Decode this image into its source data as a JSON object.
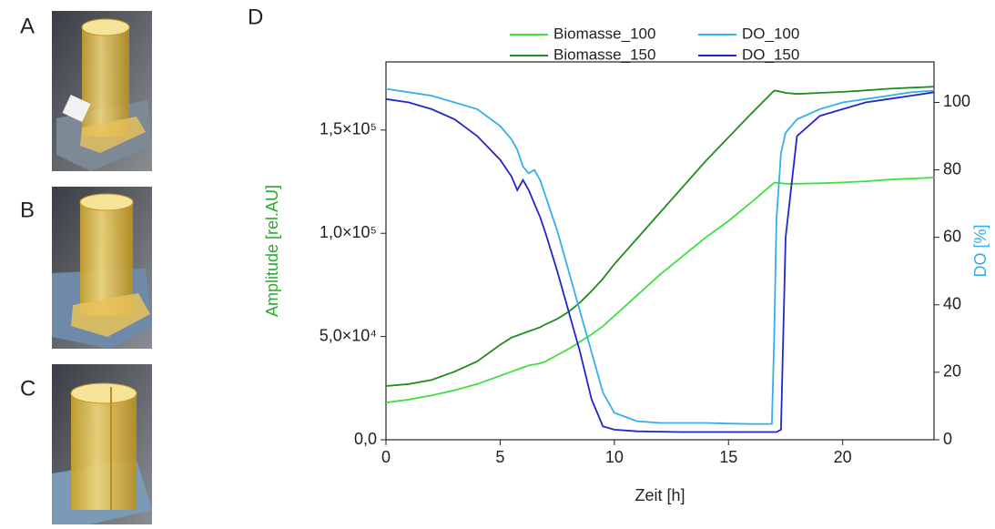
{
  "panel_labels": [
    "A",
    "B",
    "C",
    "D"
  ],
  "chart_data": {
    "type": "line",
    "xlabel": "Zeit [h]",
    "ylabel": "Amplitude [rel.AU]",
    "y2label": "DO [%]",
    "x": [
      0,
      1,
      2,
      3,
      4,
      5,
      5.5,
      5.75,
      6,
      6.25,
      6.5,
      6.75,
      7,
      7.5,
      8,
      8.5,
      9,
      9.5,
      10,
      11,
      12,
      13,
      14,
      15,
      16,
      16.9,
      17,
      17.1,
      17.3,
      17.5,
      18,
      19,
      20,
      21,
      22,
      23,
      24
    ],
    "xlim": [
      0,
      24
    ],
    "xticks": [
      0,
      5,
      10,
      15,
      20
    ],
    "ylim": [
      0,
      183000
    ],
    "yticks": [
      {
        "value": 0,
        "label": "0,0"
      },
      {
        "value": 50000,
        "label": "5,0×10⁴"
      },
      {
        "value": 100000,
        "label": "1,0×10⁵"
      },
      {
        "value": 150000,
        "label": "1,5×10⁵"
      }
    ],
    "y2lim": [
      0,
      112
    ],
    "y2ticks": [
      0,
      20,
      40,
      60,
      80,
      100
    ],
    "ylabel_color": "#2ca82c",
    "y2label_color": "#33aee6",
    "series": [
      {
        "name": "Biomasse_100",
        "color": "#3ee03e",
        "values": [
          18000,
          19500,
          21500,
          24000,
          27000,
          31000,
          33000,
          34000,
          35000,
          36000,
          36500,
          37000,
          38000,
          41000,
          44000,
          47500,
          51000,
          55000,
          60000,
          70000,
          80000,
          89000,
          98000,
          106000,
          115000,
          123500,
          124500,
          124500,
          124300,
          124000,
          124000,
          124200,
          124600,
          125200,
          126000,
          126500,
          127000
        ]
      },
      {
        "name": "Biomasse_150",
        "color": "#1e8c1e",
        "values": [
          26000,
          27000,
          29000,
          33000,
          38000,
          46000,
          49500,
          50500,
          51500,
          52500,
          53500,
          54500,
          56000,
          58500,
          62000,
          66500,
          72000,
          78000,
          85000,
          97500,
          110000,
          122500,
          135000,
          146500,
          158000,
          168000,
          169000,
          169000,
          168500,
          168000,
          167500,
          168000,
          168500,
          169200,
          170000,
          170500,
          171000
        ]
      },
      {
        "name": "DO_100",
        "color": "#33b0e8",
        "axis": "y2",
        "values": [
          104,
          103,
          102,
          100,
          98,
          93,
          89,
          86,
          81,
          79,
          80,
          77,
          72,
          62,
          50,
          38,
          26,
          14,
          8,
          5.5,
          5,
          5,
          5,
          4.8,
          4.7,
          4.7,
          30,
          65,
          85,
          91,
          95,
          98,
          100,
          101,
          102,
          103,
          103.5
        ]
      },
      {
        "name": "DO_150",
        "color": "#2424cc",
        "axis": "y2",
        "values": [
          101,
          100,
          98,
          95,
          90,
          83,
          78,
          74,
          77,
          74,
          70,
          66,
          61,
          50,
          38,
          26,
          12,
          4,
          3,
          2.5,
          2.4,
          2.3,
          2.3,
          2.3,
          2.3,
          2.3,
          2.3,
          2.3,
          3,
          60,
          90,
          96,
          98,
          100,
          101,
          102,
          103
        ]
      }
    ]
  }
}
